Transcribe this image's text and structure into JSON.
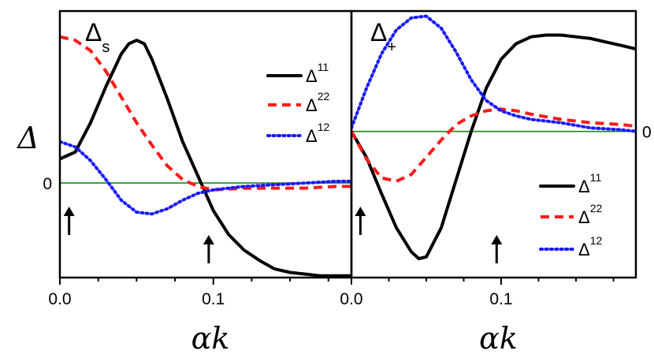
{
  "colors": {
    "frame": "#000000",
    "zero_line": "#1a8a1a",
    "series_11": "#000000",
    "series_22": "#ff1a1a",
    "series_12": "#1a1aff"
  },
  "ylabel": "Δ",
  "zero_tick_label": "0",
  "chart_data": [
    {
      "type": "line",
      "title": "Δs",
      "title_main": "Δ",
      "title_sub": "s",
      "xlabel": "αk",
      "xlim": [
        0,
        0.19
      ],
      "ylim": [
        -0.55,
        1.0
      ],
      "x_ticks": [
        0.0,
        0.1
      ],
      "x_tick_labels": [
        "0.0",
        "0.1"
      ],
      "y_ticks": [
        0
      ],
      "y_tick_labels": [
        "0"
      ],
      "legend_position": "top-right",
      "annotations": [
        {
          "type": "arrow",
          "x": 0.006
        },
        {
          "type": "arrow",
          "x": 0.097
        }
      ],
      "series": [
        {
          "name": "Δ11",
          "label_main": "Δ",
          "label_sup": "11",
          "style": "solid",
          "color": "#000000",
          "x": [
            0,
            0.01,
            0.02,
            0.03,
            0.04,
            0.045,
            0.05,
            0.055,
            0.06,
            0.07,
            0.08,
            0.09,
            0.1,
            0.11,
            0.12,
            0.13,
            0.14,
            0.15,
            0.16,
            0.17,
            0.18,
            0.19
          ],
          "y": [
            0.14,
            0.18,
            0.35,
            0.56,
            0.75,
            0.81,
            0.83,
            0.81,
            0.72,
            0.49,
            0.24,
            0.04,
            -0.16,
            -0.3,
            -0.39,
            -0.45,
            -0.5,
            -0.52,
            -0.53,
            -0.54,
            -0.54,
            -0.54
          ]
        },
        {
          "name": "Δ22",
          "label_main": "Δ",
          "label_sup": "22",
          "style": "dashed",
          "color": "#ff1a1a",
          "x": [
            0,
            0.01,
            0.02,
            0.03,
            0.04,
            0.05,
            0.06,
            0.07,
            0.08,
            0.09,
            0.1,
            0.12,
            0.14,
            0.16,
            0.18,
            0.19
          ],
          "y": [
            0.85,
            0.83,
            0.77,
            0.65,
            0.5,
            0.35,
            0.22,
            0.1,
            0.02,
            -0.02,
            -0.04,
            -0.03,
            -0.03,
            -0.03,
            -0.02,
            -0.02
          ]
        },
        {
          "name": "Δ12",
          "label_main": "Δ",
          "label_sup": "12",
          "style": "dotted",
          "color": "#1a1aff",
          "x": [
            0,
            0.01,
            0.02,
            0.03,
            0.04,
            0.05,
            0.06,
            0.07,
            0.08,
            0.09,
            0.1,
            0.12,
            0.14,
            0.16,
            0.18,
            0.19
          ],
          "y": [
            0.24,
            0.21,
            0.13,
            0.02,
            -0.1,
            -0.17,
            -0.18,
            -0.15,
            -0.1,
            -0.06,
            -0.04,
            -0.02,
            -0.01,
            0.0,
            0.01,
            0.01
          ]
        }
      ]
    },
    {
      "type": "line",
      "title": "Δ+",
      "title_main": "Δ",
      "title_sub": "+",
      "xlabel": "αk",
      "xlim": [
        0,
        0.19
      ],
      "ylim": [
        -0.85,
        0.7
      ],
      "x_ticks": [
        0.0,
        0.1
      ],
      "x_tick_labels": [
        "0.0",
        "0.1"
      ],
      "y_ticks": [
        0
      ],
      "y_tick_labels": [
        "0"
      ],
      "legend_position": "bottom-right",
      "annotations": [
        {
          "type": "arrow",
          "x": 0.006
        },
        {
          "type": "arrow",
          "x": 0.097
        }
      ],
      "series": [
        {
          "name": "Δ11",
          "label_main": "Δ",
          "label_sup": "11",
          "style": "solid",
          "color": "#000000",
          "x": [
            0,
            0.01,
            0.02,
            0.03,
            0.04,
            0.045,
            0.05,
            0.06,
            0.07,
            0.08,
            0.09,
            0.1,
            0.11,
            0.12,
            0.13,
            0.14,
            0.15,
            0.16,
            0.17,
            0.18,
            0.19
          ],
          "y": [
            0.0,
            -0.15,
            -0.36,
            -0.56,
            -0.7,
            -0.74,
            -0.73,
            -0.56,
            -0.28,
            0.0,
            0.25,
            0.42,
            0.51,
            0.55,
            0.56,
            0.56,
            0.55,
            0.54,
            0.52,
            0.5,
            0.48
          ]
        },
        {
          "name": "Δ22",
          "label_main": "Δ",
          "label_sup": "22",
          "style": "dashed",
          "color": "#ff1a1a",
          "x": [
            0,
            0.01,
            0.02,
            0.03,
            0.04,
            0.05,
            0.06,
            0.07,
            0.08,
            0.09,
            0.1,
            0.11,
            0.12,
            0.14,
            0.16,
            0.18,
            0.19
          ],
          "y": [
            0.0,
            -0.16,
            -0.27,
            -0.29,
            -0.25,
            -0.15,
            -0.05,
            0.04,
            0.09,
            0.12,
            0.13,
            0.12,
            0.1,
            0.07,
            0.05,
            0.04,
            0.03
          ]
        },
        {
          "name": "Δ12",
          "label_main": "Δ",
          "label_sup": "12",
          "style": "dotted",
          "color": "#1a1aff",
          "x": [
            0,
            0.01,
            0.02,
            0.03,
            0.04,
            0.05,
            0.06,
            0.07,
            0.08,
            0.09,
            0.1,
            0.11,
            0.12,
            0.14,
            0.16,
            0.18,
            0.19
          ],
          "y": [
            0.02,
            0.25,
            0.45,
            0.59,
            0.66,
            0.67,
            0.6,
            0.46,
            0.3,
            0.18,
            0.12,
            0.09,
            0.07,
            0.05,
            0.02,
            0.01,
            0.0
          ]
        }
      ]
    }
  ]
}
